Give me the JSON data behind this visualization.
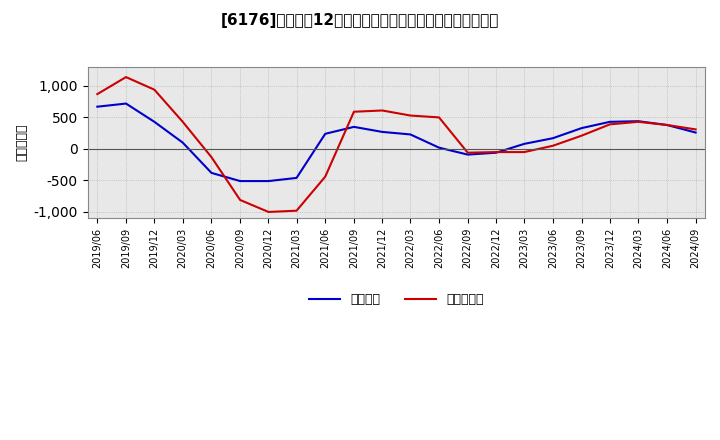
{
  "title": "[6176]　利益だ12か月移動合計の対前年同期増減額の推移",
  "ylabel": "（百万円）",
  "dates": [
    "2019/06",
    "2019/09",
    "2019/12",
    "2020/03",
    "2020/06",
    "2020/09",
    "2020/12",
    "2021/03",
    "2021/06",
    "2021/09",
    "2021/12",
    "2022/03",
    "2022/06",
    "2022/09",
    "2022/12",
    "2023/03",
    "2023/06",
    "2023/09",
    "2023/12",
    "2024/03",
    "2024/06",
    "2024/09"
  ],
  "keijo_rieki": [
    670,
    720,
    430,
    100,
    -380,
    -510,
    -510,
    -460,
    240,
    350,
    270,
    230,
    20,
    -90,
    -60,
    80,
    170,
    330,
    430,
    440,
    380,
    260
  ],
  "toki_jun_rieki": [
    870,
    1140,
    940,
    430,
    -130,
    -810,
    -1000,
    -980,
    -440,
    590,
    610,
    530,
    500,
    -60,
    -50,
    -50,
    50,
    210,
    390,
    430,
    380,
    310
  ],
  "keijo_color": "#0000cc",
  "toki_color": "#cc0000",
  "ylim": [
    -1100,
    1300
  ],
  "yticks": [
    -1000,
    -500,
    0,
    500,
    1000
  ],
  "background_color": "#ffffff",
  "grid_color": "#aaaaaa",
  "legend_keijo": "経常利益",
  "legend_toki": "当期純利益"
}
